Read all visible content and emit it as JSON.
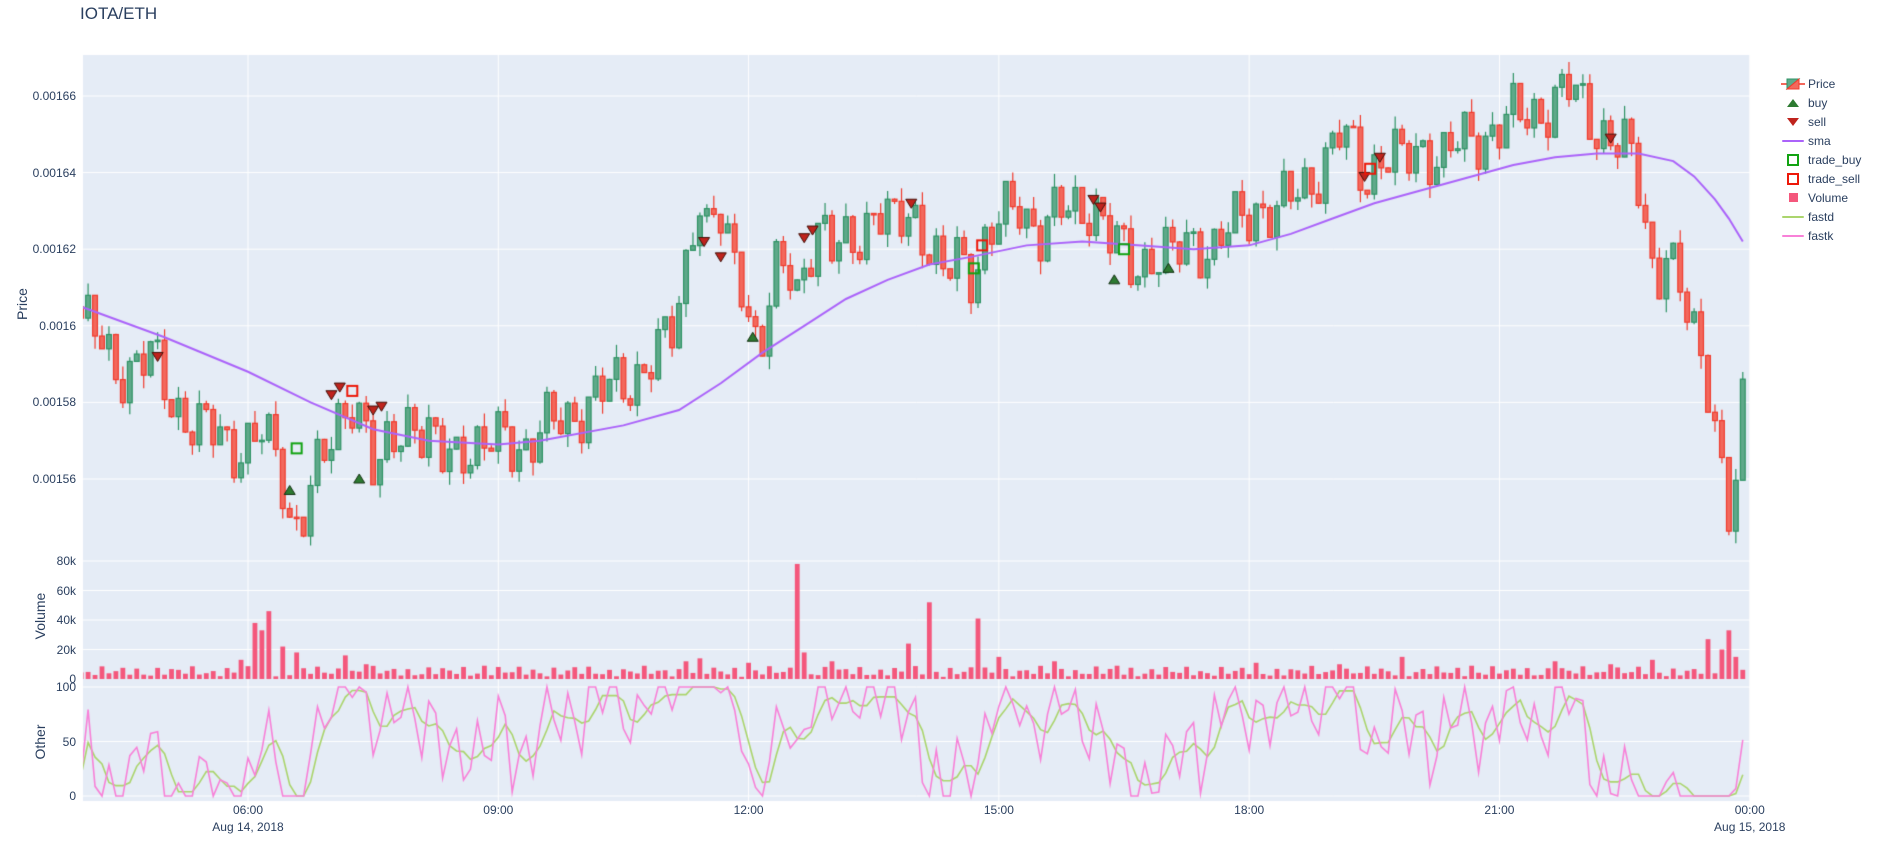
{
  "title": "IOTA/ETH",
  "colors": {
    "background": "#ffffff",
    "plot_background": "#e5ecf6",
    "grid": "#ffffff",
    "text": "#2a3f5f",
    "candle_up_line": "#2e9364",
    "candle_up_fill": "#5fa98a",
    "candle_down_line": "#f03b2d",
    "candle_down_fill": "#f3685c",
    "sma": "#ab63fa",
    "volume": "#f4577c",
    "fastd": "#abd56d",
    "fastk": "#f881d8",
    "buy_marker": "#2d7a31",
    "buy_marker_edge": "#143214",
    "sell_marker": "#bf231d",
    "sell_marker_edge": "#431008",
    "trade_buy": "#12a312",
    "trade_sell": "#ed1809"
  },
  "axes": {
    "price": {
      "title": "Price",
      "ticks": [
        {
          "label": "0.00166",
          "value": 0.00166
        },
        {
          "label": "0.00164",
          "value": 0.00164
        },
        {
          "label": "0.00162",
          "value": 0.00162
        },
        {
          "label": "0.0016",
          "value": 0.0016
        },
        {
          "label": "0.00158",
          "value": 0.00158
        },
        {
          "label": "0.00156",
          "value": 0.00156
        }
      ]
    },
    "volume": {
      "title": "Volume",
      "ticks": [
        {
          "label": "80k",
          "value": 80
        },
        {
          "label": "60k",
          "value": 60
        },
        {
          "label": "40k",
          "value": 40
        },
        {
          "label": "20k",
          "value": 20
        },
        {
          "label": "0",
          "value": 0
        }
      ]
    },
    "other": {
      "title": "Other",
      "ticks": [
        {
          "label": "100",
          "value": 100
        },
        {
          "label": "50",
          "value": 50
        },
        {
          "label": "0",
          "value": 0
        }
      ]
    },
    "x": {
      "ticks": [
        {
          "label": "06:00",
          "t": 120
        },
        {
          "label": "09:00",
          "t": 300
        },
        {
          "label": "12:00",
          "t": 480
        },
        {
          "label": "15:00",
          "t": 660
        },
        {
          "label": "18:00",
          "t": 840
        },
        {
          "label": "21:00",
          "t": 1020
        },
        {
          "label": "00:00",
          "t": 1200
        }
      ],
      "dates": [
        {
          "label": "Aug 14, 2018",
          "t": 120
        },
        {
          "label": "Aug 15, 2018",
          "t": 1200
        }
      ]
    }
  },
  "legend": [
    {
      "id": "price",
      "label": "Price",
      "type": "candle"
    },
    {
      "id": "buy",
      "label": "buy",
      "type": "triangle-up",
      "color": "#2d7a31"
    },
    {
      "id": "sell",
      "label": "sell",
      "type": "triangle-down",
      "color": "#bf231d"
    },
    {
      "id": "sma",
      "label": "sma",
      "type": "line",
      "color": "#ab63fa"
    },
    {
      "id": "trade_buy",
      "label": "trade_buy",
      "type": "open-square",
      "color": "#12a312"
    },
    {
      "id": "trade_sell",
      "label": "trade_sell",
      "type": "open-square",
      "color": "#ed1809"
    },
    {
      "id": "volume",
      "label": "Volume",
      "type": "square",
      "color": "#f4577c"
    },
    {
      "id": "fastd",
      "label": "fastd",
      "type": "line",
      "color": "#abd56d"
    },
    {
      "id": "fastk",
      "label": "fastk",
      "type": "line",
      "color": "#f881d8"
    }
  ],
  "chart_data": {
    "type": "candlestick",
    "pair": "IOTA/ETH",
    "timeframe_minutes": 5,
    "x_start": "2018-08-14 04:00",
    "x_end": "2018-08-15 00:00",
    "ylim_price": [
      0.001541,
      0.001671
    ],
    "ylim_volume": [
      0,
      87000
    ],
    "ylim_other": [
      -5,
      105
    ],
    "grid": true,
    "legend_position": "right",
    "note_t_units": "minutes after 2018-08-14 04:00",
    "price_close_anchors": [
      [
        0,
        0.001602
      ],
      [
        10,
        0.001597
      ],
      [
        25,
        0.001589
      ],
      [
        50,
        0.001591
      ],
      [
        65,
        0.001581
      ],
      [
        85,
        0.001573
      ],
      [
        110,
        0.001569
      ],
      [
        130,
        0.001571
      ],
      [
        143,
        0.001563
      ],
      [
        150,
        0.001551
      ],
      [
        157,
        0.001549
      ],
      [
        165,
        0.001558
      ],
      [
        175,
        0.001564
      ],
      [
        185,
        0.001575
      ],
      [
        195,
        0.001583
      ],
      [
        202,
        0.001577
      ],
      [
        208,
        0.001565
      ],
      [
        212,
        0.001557
      ],
      [
        218,
        0.001565
      ],
      [
        228,
        0.001574
      ],
      [
        238,
        0.001578
      ],
      [
        245,
        0.001571
      ],
      [
        260,
        0.001565
      ],
      [
        275,
        0.00157
      ],
      [
        290,
        0.001567
      ],
      [
        305,
        0.001571
      ],
      [
        320,
        0.001569
      ],
      [
        340,
        0.001574
      ],
      [
        360,
        0.001579
      ],
      [
        380,
        0.001583
      ],
      [
        400,
        0.001588
      ],
      [
        415,
        0.001592
      ],
      [
        425,
        0.001598
      ],
      [
        432,
        0.00161
      ],
      [
        438,
        0.001625
      ],
      [
        444,
        0.001636
      ],
      [
        450,
        0.001624
      ],
      [
        458,
        0.001628
      ],
      [
        465,
        0.00162
      ],
      [
        475,
        0.001614
      ],
      [
        483,
        0.0016
      ],
      [
        488,
        0.001593
      ],
      [
        494,
        0.001603
      ],
      [
        500,
        0.001612
      ],
      [
        508,
        0.001616
      ],
      [
        515,
        0.00161
      ],
      [
        522,
        0.00162
      ],
      [
        530,
        0.001625
      ],
      [
        540,
        0.001618
      ],
      [
        555,
        0.001624
      ],
      [
        570,
        0.001629
      ],
      [
        585,
        0.001625
      ],
      [
        597,
        0.001632
      ],
      [
        610,
        0.001621
      ],
      [
        620,
        0.001611
      ],
      [
        630,
        0.001618
      ],
      [
        642,
        0.001615
      ],
      [
        648,
        0.001621
      ],
      [
        660,
        0.001626
      ],
      [
        675,
        0.001632
      ],
      [
        690,
        0.001625
      ],
      [
        705,
        0.001629
      ],
      [
        728,
        0.001633
      ],
      [
        740,
        0.001622
      ],
      [
        755,
        0.001616
      ],
      [
        770,
        0.001619
      ],
      [
        785,
        0.001617
      ],
      [
        800,
        0.001623
      ],
      [
        815,
        0.00162
      ],
      [
        830,
        0.001626
      ],
      [
        845,
        0.001632
      ],
      [
        860,
        0.001629
      ],
      [
        875,
        0.001635
      ],
      [
        890,
        0.001641
      ],
      [
        905,
        0.001649
      ],
      [
        915,
        0.001645
      ],
      [
        923,
        0.001639
      ],
      [
        935,
        0.001645
      ],
      [
        950,
        0.001642
      ],
      [
        965,
        0.001647
      ],
      [
        980,
        0.001644
      ],
      [
        1000,
        0.001649
      ],
      [
        1020,
        0.001652
      ],
      [
        1040,
        0.001655
      ],
      [
        1055,
        0.001658
      ],
      [
        1070,
        0.001661
      ],
      [
        1085,
        0.001655
      ],
      [
        1100,
        0.001649
      ],
      [
        1112,
        0.001645
      ],
      [
        1122,
        0.001634
      ],
      [
        1132,
        0.001612
      ],
      [
        1140,
        0.001621
      ],
      [
        1150,
        0.001607
      ],
      [
        1160,
        0.001597
      ],
      [
        1172,
        0.001585
      ],
      [
        1180,
        0.001563
      ],
      [
        1186,
        0.001548
      ],
      [
        1192,
        0.001562
      ],
      [
        1196,
        0.001581
      ],
      [
        1199,
        0.001608
      ]
    ],
    "sma_anchors": [
      [
        0,
        0.001605
      ],
      [
        60,
        0.001597
      ],
      [
        120,
        0.001588
      ],
      [
        165,
        0.00158
      ],
      [
        210,
        0.001573
      ],
      [
        250,
        0.00157
      ],
      [
        300,
        0.001569
      ],
      [
        330,
        0.00157
      ],
      [
        390,
        0.001574
      ],
      [
        430,
        0.001578
      ],
      [
        460,
        0.001585
      ],
      [
        490,
        0.001593
      ],
      [
        520,
        0.0016
      ],
      [
        550,
        0.001607
      ],
      [
        580,
        0.001612
      ],
      [
        610,
        0.001616
      ],
      [
        640,
        0.001618
      ],
      [
        680,
        0.001621
      ],
      [
        720,
        0.001622
      ],
      [
        760,
        0.001621
      ],
      [
        800,
        0.00162
      ],
      [
        840,
        0.001621
      ],
      [
        870,
        0.001624
      ],
      [
        900,
        0.001628
      ],
      [
        930,
        0.001632
      ],
      [
        960,
        0.001635
      ],
      [
        1000,
        0.001639
      ],
      [
        1030,
        0.001642
      ],
      [
        1060,
        0.001644
      ],
      [
        1090,
        0.001645
      ],
      [
        1120,
        0.001645
      ],
      [
        1145,
        0.001643
      ],
      [
        1160,
        0.001639
      ],
      [
        1175,
        0.001633
      ],
      [
        1185,
        0.001628
      ],
      [
        1195,
        0.001622
      ]
    ],
    "volume_spikes_k": [
      [
        115,
        13
      ],
      [
        125,
        38
      ],
      [
        130,
        33
      ],
      [
        135,
        46
      ],
      [
        145,
        22
      ],
      [
        155,
        18
      ],
      [
        190,
        16
      ],
      [
        205,
        10
      ],
      [
        290,
        9
      ],
      [
        355,
        8
      ],
      [
        435,
        12
      ],
      [
        445,
        14
      ],
      [
        480,
        11
      ],
      [
        513,
        78
      ],
      [
        518,
        18
      ],
      [
        540,
        12
      ],
      [
        597,
        24
      ],
      [
        608,
        52
      ],
      [
        645,
        41
      ],
      [
        660,
        15
      ],
      [
        700,
        12
      ],
      [
        745,
        9
      ],
      [
        845,
        11
      ],
      [
        905,
        10
      ],
      [
        950,
        15
      ],
      [
        1000,
        9
      ],
      [
        1060,
        12
      ],
      [
        1100,
        10
      ],
      [
        1130,
        13
      ],
      [
        1172,
        27
      ],
      [
        1180,
        20
      ],
      [
        1186,
        33
      ],
      [
        1192,
        15
      ]
    ],
    "volume_base_max_k": 9,
    "stochastic": {
      "fastk_window": 14,
      "fastd_smoothing": 3
    },
    "markers": {
      "buy": [
        [
          150,
          0.001557
        ],
        [
          200,
          0.00156
        ],
        [
          483,
          0.001597
        ],
        [
          743,
          0.001612
        ],
        [
          782,
          0.001615
        ]
      ],
      "sell": [
        [
          55,
          0.001592
        ],
        [
          180,
          0.001582
        ],
        [
          186,
          0.001584
        ],
        [
          210,
          0.001578
        ],
        [
          216,
          0.001579
        ],
        [
          448,
          0.001622
        ],
        [
          460,
          0.001618
        ],
        [
          520,
          0.001623
        ],
        [
          526,
          0.001625
        ],
        [
          597,
          0.001632
        ],
        [
          728,
          0.001633
        ],
        [
          733,
          0.001631
        ],
        [
          923,
          0.001639
        ],
        [
          934,
          0.001644
        ],
        [
          1100,
          0.001649
        ]
      ],
      "trade_buy": [
        [
          155,
          0.001568
        ],
        [
          642,
          0.001615
        ],
        [
          750,
          0.00162
        ]
      ],
      "trade_sell": [
        [
          195,
          0.001583
        ],
        [
          648,
          0.001621
        ],
        [
          927,
          0.001641
        ]
      ]
    }
  }
}
